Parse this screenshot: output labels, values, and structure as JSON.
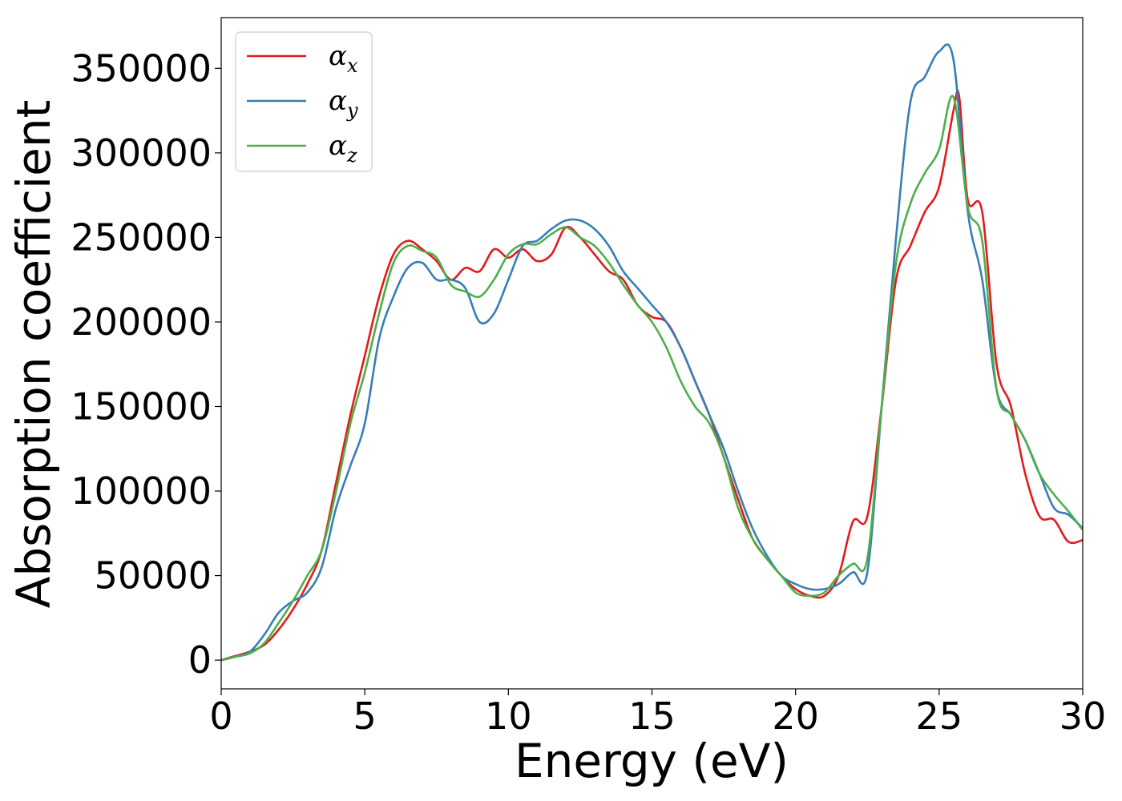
{
  "chart_data": {
    "type": "line",
    "xlabel": "Energy (eV)",
    "ylabel": "Absorption coefficient",
    "xlim": [
      0,
      30
    ],
    "ylim": [
      -17000,
      380000
    ],
    "xticks": [
      0,
      5,
      10,
      15,
      20,
      25,
      30
    ],
    "yticks": [
      0,
      50000,
      100000,
      150000,
      200000,
      250000,
      300000,
      350000
    ],
    "grid": false,
    "legend_position": "top-left",
    "series": [
      {
        "name": "α_x",
        "label_base": "α",
        "label_sub": "x",
        "color": "#e41a1c",
        "x": [
          0,
          0.5,
          1,
          1.5,
          2,
          2.5,
          3,
          3.5,
          4,
          4.5,
          5,
          5.5,
          6,
          6.5,
          7,
          7.5,
          8,
          8.5,
          9,
          9.5,
          10,
          10.5,
          11,
          11.5,
          12,
          12.5,
          13,
          13.5,
          14,
          14.5,
          15,
          15.5,
          16,
          16.5,
          17,
          17.5,
          18,
          18.5,
          19,
          19.5,
          20,
          20.5,
          21,
          21.5,
          22,
          22.5,
          23,
          23.5,
          24,
          24.5,
          25,
          25.5,
          25.7,
          26,
          26.5,
          27,
          27.5,
          28,
          28.5,
          29,
          29.5,
          30
        ],
        "y": [
          0,
          2500,
          5000,
          9000,
          18000,
          30000,
          45000,
          65000,
          105000,
          145000,
          180000,
          215000,
          240000,
          248000,
          243000,
          236000,
          225000,
          232000,
          230000,
          243000,
          238000,
          243000,
          236000,
          240000,
          256000,
          250000,
          240000,
          230000,
          225000,
          210000,
          203000,
          200000,
          185000,
          165000,
          145000,
          120000,
          95000,
          72000,
          60000,
          50000,
          42000,
          38000,
          38000,
          50000,
          82000,
          85000,
          150000,
          225000,
          245000,
          265000,
          280000,
          325000,
          333000,
          272000,
          265000,
          175000,
          150000,
          110000,
          85000,
          83000,
          70000,
          71000
        ]
      },
      {
        "name": "α_y",
        "label_base": "α",
        "label_sub": "y",
        "color": "#377eb8",
        "x": [
          0,
          0.5,
          1,
          1.5,
          2,
          2.5,
          3,
          3.5,
          4,
          4.5,
          5,
          5.5,
          6,
          6.5,
          7,
          7.5,
          8,
          8.5,
          9,
          9.5,
          10,
          10.5,
          11,
          11.5,
          12,
          12.5,
          13,
          13.5,
          14,
          14.5,
          15,
          15.5,
          16,
          16.5,
          17,
          17.5,
          18,
          18.5,
          19,
          19.5,
          20,
          20.5,
          21,
          21.5,
          22,
          22.5,
          23,
          23.5,
          24,
          24.5,
          25,
          25.5,
          26,
          26.5,
          27,
          27.5,
          28,
          28.5,
          29,
          29.5,
          30
        ],
        "y": [
          0,
          2000,
          5000,
          15000,
          28000,
          35000,
          40000,
          55000,
          90000,
          115000,
          140000,
          190000,
          215000,
          232000,
          235000,
          225000,
          225000,
          220000,
          200000,
          205000,
          225000,
          245000,
          248000,
          255000,
          260000,
          260000,
          255000,
          245000,
          230000,
          220000,
          210000,
          200000,
          185000,
          165000,
          145000,
          125000,
          100000,
          78000,
          62000,
          50000,
          45000,
          42000,
          42000,
          45000,
          52000,
          52000,
          150000,
          250000,
          330000,
          345000,
          360000,
          355000,
          265000,
          225000,
          160000,
          145000,
          130000,
          110000,
          90000,
          86000,
          78000
        ]
      },
      {
        "name": "α_z",
        "label_base": "α",
        "label_sub": "z",
        "color": "#4daf4a",
        "x": [
          0,
          0.5,
          1,
          1.5,
          2,
          2.5,
          3,
          3.5,
          4,
          4.5,
          5,
          5.5,
          6,
          6.5,
          7,
          7.5,
          8,
          8.5,
          9,
          9.5,
          10,
          10.5,
          11,
          11.5,
          12,
          12.5,
          13,
          13.5,
          14,
          14.5,
          15,
          15.5,
          16,
          16.5,
          17,
          17.5,
          18,
          18.5,
          19,
          19.5,
          20,
          20.5,
          21,
          21.5,
          22,
          22.5,
          23,
          23.5,
          24,
          24.5,
          25,
          25.5,
          26,
          26.5,
          27,
          27.5,
          28,
          28.5,
          29,
          29.5,
          30
        ],
        "y": [
          0,
          2000,
          4000,
          10000,
          22000,
          35000,
          50000,
          65000,
          100000,
          140000,
          170000,
          205000,
          235000,
          245000,
          242000,
          238000,
          222000,
          218000,
          215000,
          225000,
          240000,
          246000,
          246000,
          252000,
          256000,
          250000,
          245000,
          235000,
          222000,
          210000,
          200000,
          185000,
          165000,
          150000,
          140000,
          120000,
          90000,
          72000,
          60000,
          50000,
          40000,
          38000,
          40000,
          50000,
          57000,
          60000,
          150000,
          235000,
          270000,
          288000,
          302000,
          333000,
          268000,
          248000,
          160000,
          145000,
          130000,
          110000,
          98000,
          88000,
          77000
        ]
      }
    ]
  }
}
